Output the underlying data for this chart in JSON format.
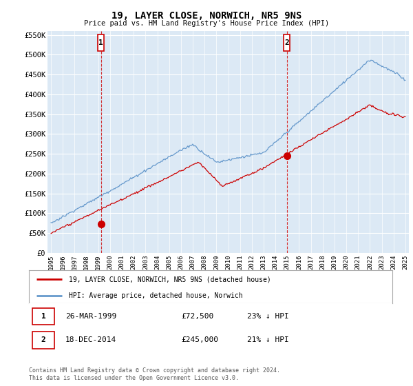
{
  "title": "19, LAYER CLOSE, NORWICH, NR5 9NS",
  "subtitle": "Price paid vs. HM Land Registry's House Price Index (HPI)",
  "ylim": [
    0,
    560000
  ],
  "yticks": [
    0,
    50000,
    100000,
    150000,
    200000,
    250000,
    300000,
    350000,
    400000,
    450000,
    500000,
    550000
  ],
  "ytick_labels": [
    "£0",
    "£50K",
    "£100K",
    "£150K",
    "£200K",
    "£250K",
    "£300K",
    "£350K",
    "£400K",
    "£450K",
    "£500K",
    "£550K"
  ],
  "background_color": "#ffffff",
  "plot_bg_color": "#dce9f5",
  "grid_color": "#ffffff",
  "line_color_red": "#cc0000",
  "line_color_blue": "#6699cc",
  "sale1_year": 1999.23,
  "sale1_price": 72500,
  "sale2_year": 2014.96,
  "sale2_price": 245000,
  "legend_label_red": "19, LAYER CLOSE, NORWICH, NR5 9NS (detached house)",
  "legend_label_blue": "HPI: Average price, detached house, Norwich",
  "table_row1": [
    "1",
    "26-MAR-1999",
    "£72,500",
    "23% ↓ HPI"
  ],
  "table_row2": [
    "2",
    "18-DEC-2014",
    "£245,000",
    "21% ↓ HPI"
  ],
  "footer": "Contains HM Land Registry data © Crown copyright and database right 2024.\nThis data is licensed under the Open Government Licence v3.0.",
  "xstart": 1995,
  "xend": 2025,
  "highlight_bg_color": "#dce9f5",
  "outer_bg_color": "#e8e8e8"
}
